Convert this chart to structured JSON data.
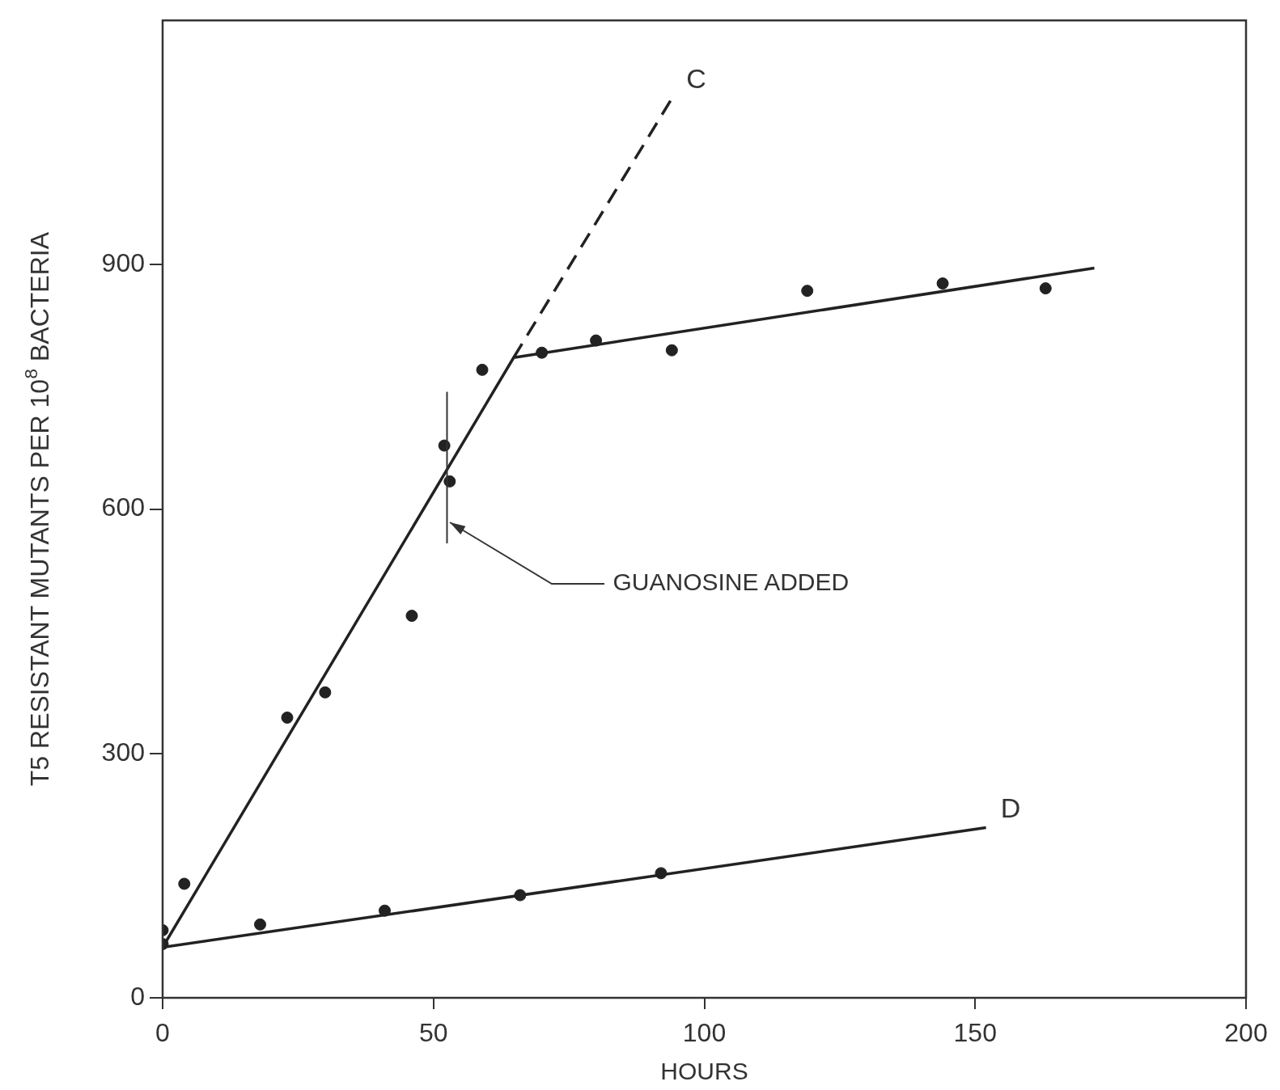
{
  "chart_data": {
    "type": "scatter",
    "xlabel": "HOURS",
    "ylabel": "T5 RESISTANT MUTANTS PER 10$^{8}$ BACTERIA",
    "xlim": [
      0,
      200
    ],
    "ylim": [
      0,
      1200
    ],
    "xticks": [
      0,
      50,
      100,
      150,
      200
    ],
    "yticks": [
      0,
      300,
      600,
      900
    ],
    "grid": false,
    "legend": false,
    "marker": "circle",
    "ref_lines": [
      {
        "axis": "x",
        "value": 52.5,
        "label": "GUANOSINE ADDED"
      }
    ],
    "series": [
      {
        "color": "#222222",
        "x": [
          0,
          4,
          23,
          30,
          46,
          52,
          53,
          59,
          70,
          80,
          94,
          119,
          144,
          163
        ],
        "values": [
          83,
          140,
          344,
          375,
          469,
          678,
          634,
          771,
          792,
          807,
          795,
          868,
          877,
          871
        ]
      },
      {
        "color": "#222222",
        "x": [
          0,
          18,
          41,
          66,
          92
        ],
        "values": [
          66,
          90,
          107,
          126,
          153
        ]
      },
      {
        "type": "line",
        "color": "#222222",
        "marker": "none",
        "line_style": "solid",
        "x": [
          0,
          64.8,
          172
        ],
        "values": [
          62,
          786,
          896
        ]
      },
      {
        "type": "line",
        "name": "C",
        "color": "#222222",
        "marker": "none",
        "line_style": "dashed",
        "x": [
          64.8,
          94
        ],
        "values": [
          786,
          1104
        ]
      },
      {
        "type": "line",
        "name": "D",
        "color": "#222222",
        "marker": "none",
        "line_style": "solid",
        "x": [
          0,
          152
        ],
        "values": [
          62,
          209
        ]
      }
    ]
  }
}
